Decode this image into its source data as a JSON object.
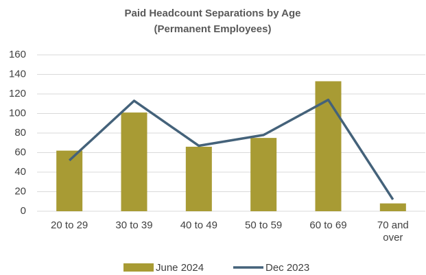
{
  "chart_data": {
    "type": "combo",
    "title": "Paid Headcount Separations by Age",
    "subtitle": "(Permanent Employees)",
    "categories": [
      "20 to 29",
      "30 to 39",
      "40 to 49",
      "50 to 59",
      "60 to 69",
      "70 and over"
    ],
    "series": [
      {
        "name": "June 2024",
        "type": "bar",
        "color": "#a89b34",
        "values": [
          62,
          101,
          66,
          75,
          133,
          8
        ]
      },
      {
        "name": "Dec 2023",
        "type": "line",
        "color": "#44627a",
        "values": [
          52,
          113,
          67,
          78,
          114,
          12
        ]
      }
    ],
    "ylim": [
      0,
      160
    ],
    "yticks": [
      0,
      20,
      40,
      60,
      80,
      100,
      120,
      140,
      160
    ],
    "grid": true,
    "legend": "bottom"
  }
}
